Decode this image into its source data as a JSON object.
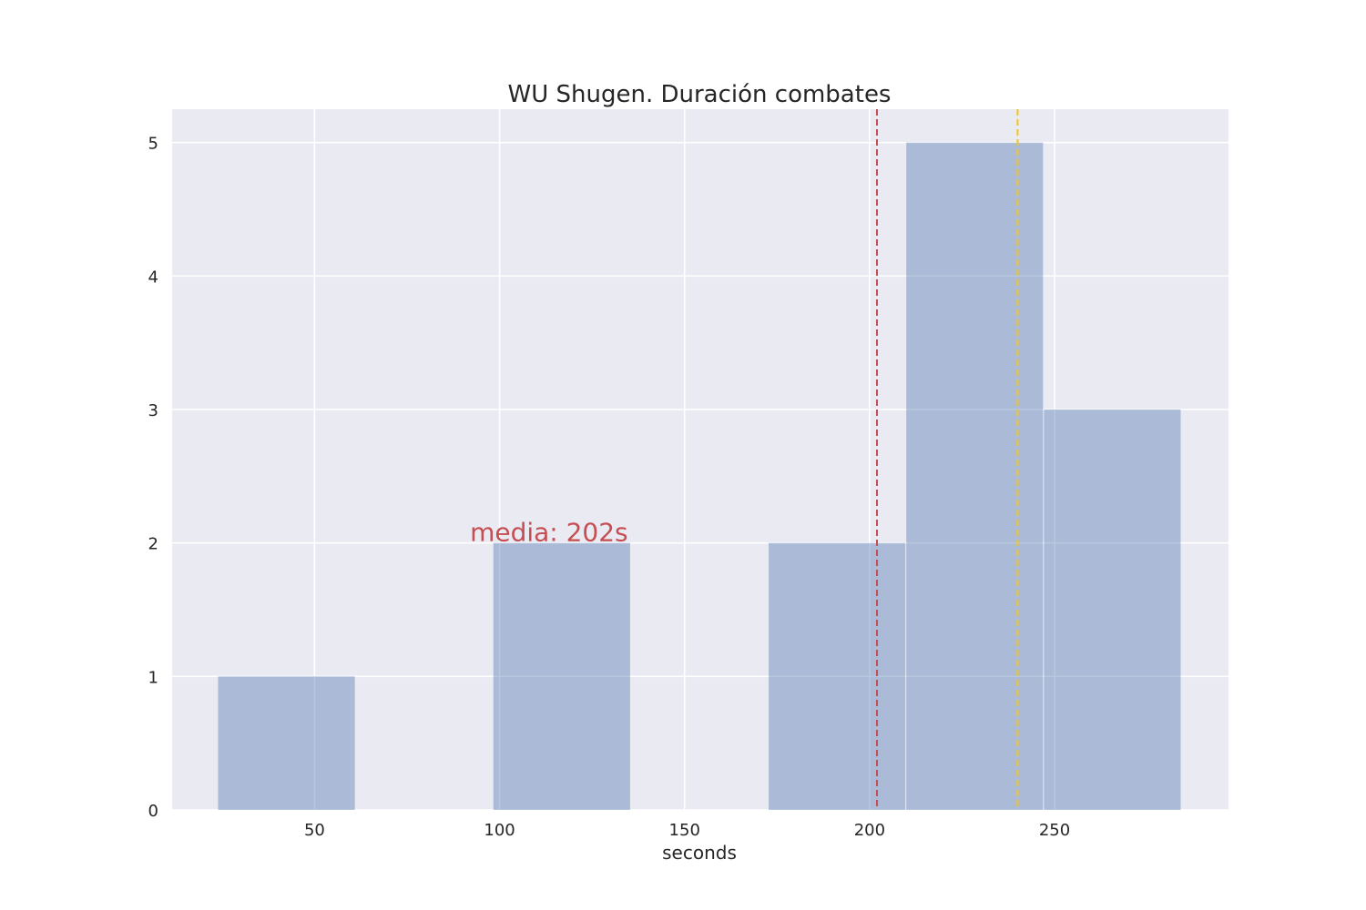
{
  "chart_data": {
    "type": "bar",
    "title": "WU Shugen. Duración combates",
    "xlabel": "seconds",
    "ylabel": "",
    "xlim": [
      11.5,
      297
    ],
    "ylim": [
      0,
      5.25
    ],
    "grid": true,
    "bin_width": 37.2,
    "bins": [
      {
        "start": 23.8,
        "end": 61.0,
        "count": 1
      },
      {
        "start": 98.2,
        "end": 135.4,
        "count": 2
      },
      {
        "start": 172.6,
        "end": 209.8,
        "count": 2
      },
      {
        "start": 209.8,
        "end": 247.0,
        "count": 5
      },
      {
        "start": 247.0,
        "end": 284.2,
        "count": 3
      }
    ],
    "x_ticks": [
      50,
      100,
      150,
      200,
      250
    ],
    "y_ticks": [
      0,
      1,
      2,
      3,
      4,
      5
    ],
    "reference_lines": [
      {
        "value": 202,
        "color": "#c44e52",
        "style": "dashed"
      },
      {
        "value": 240,
        "color": "#f5c518",
        "style": "dashed"
      }
    ],
    "annotations": [
      {
        "text": "media: 202s",
        "x": 92,
        "y": 2,
        "color": "#c44e52"
      }
    ],
    "colors": {
      "bar": "#4c72b0",
      "plot_background": "#eaeaf2",
      "grid": "#ffffff"
    }
  }
}
